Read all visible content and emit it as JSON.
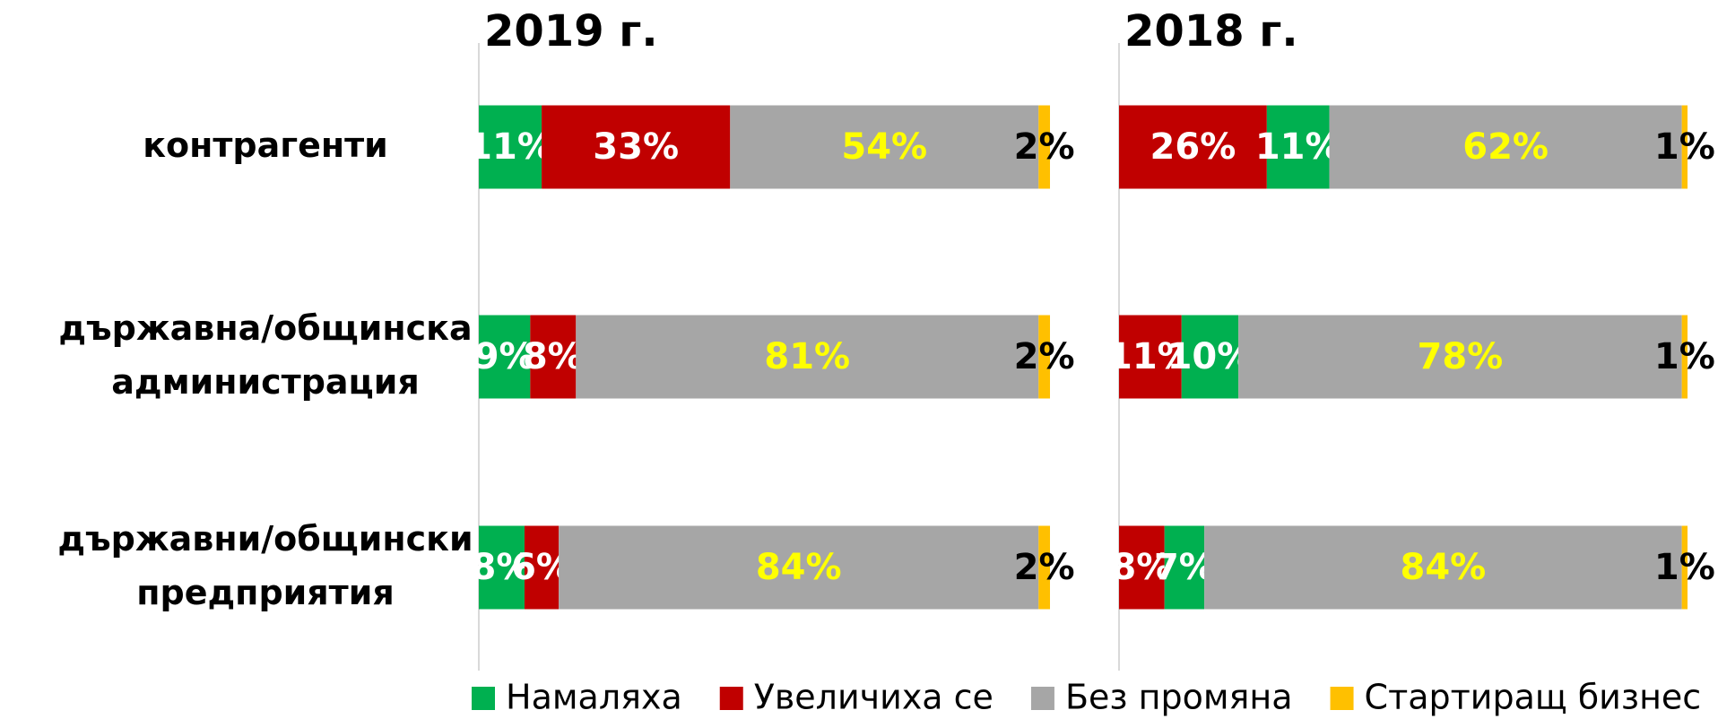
{
  "chart_data": [
    {
      "type": "stacked-bar-horizontal",
      "title": "2019 г.",
      "categories": [
        "контрагенти",
        "държавна/общинска\nадминистрация",
        "държавни/общински\nпредприятия"
      ],
      "xlim": [
        0,
        100
      ],
      "series": [
        {
          "name": "Намаляха",
          "color": "#00b050",
          "label_color": "#ffffff",
          "values": [
            11,
            9,
            8
          ],
          "value_labels": [
            "11%",
            "9%",
            "8%"
          ]
        },
        {
          "name": "Увеличиха се",
          "color": "#c00000",
          "label_color": "#ffffff",
          "values": [
            33,
            8,
            6
          ],
          "value_labels": [
            "33%",
            "8%",
            "6%"
          ]
        },
        {
          "name": "Без промяна",
          "color": "#a6a6a6",
          "label_color": "#ffff00",
          "values": [
            54,
            81,
            84
          ],
          "value_labels": [
            "54%",
            "81%",
            "84%"
          ]
        },
        {
          "name": "Стартиращ бизнес",
          "color": "#ffc000",
          "label_color": "#000000",
          "values": [
            2,
            2,
            2
          ],
          "value_labels": [
            "2%",
            "2%",
            "2%"
          ]
        }
      ]
    },
    {
      "type": "stacked-bar-horizontal",
      "title": "2018 г.",
      "xlim": [
        0,
        100
      ],
      "series": [
        {
          "name": "Увеличиха се",
          "color": "#c00000",
          "label_color": "#ffffff",
          "values": [
            26,
            11,
            8
          ],
          "value_labels": [
            "26%",
            "11%",
            "8%"
          ]
        },
        {
          "name": "Намаляха",
          "color": "#00b050",
          "label_color": "#ffffff",
          "values": [
            11,
            10,
            7
          ],
          "value_labels": [
            "11%",
            "10%",
            "7%"
          ]
        },
        {
          "name": "Без промяна",
          "color": "#a6a6a6",
          "label_color": "#ffff00",
          "values": [
            62,
            78,
            84
          ],
          "value_labels": [
            "62%",
            "78%",
            "84%"
          ]
        },
        {
          "name": "Стартиращ бизнес",
          "color": "#ffc000",
          "label_color": "#000000",
          "values": [
            1,
            1,
            1
          ],
          "value_labels": [
            "1%",
            "1%",
            "1%"
          ]
        }
      ]
    }
  ]
}
